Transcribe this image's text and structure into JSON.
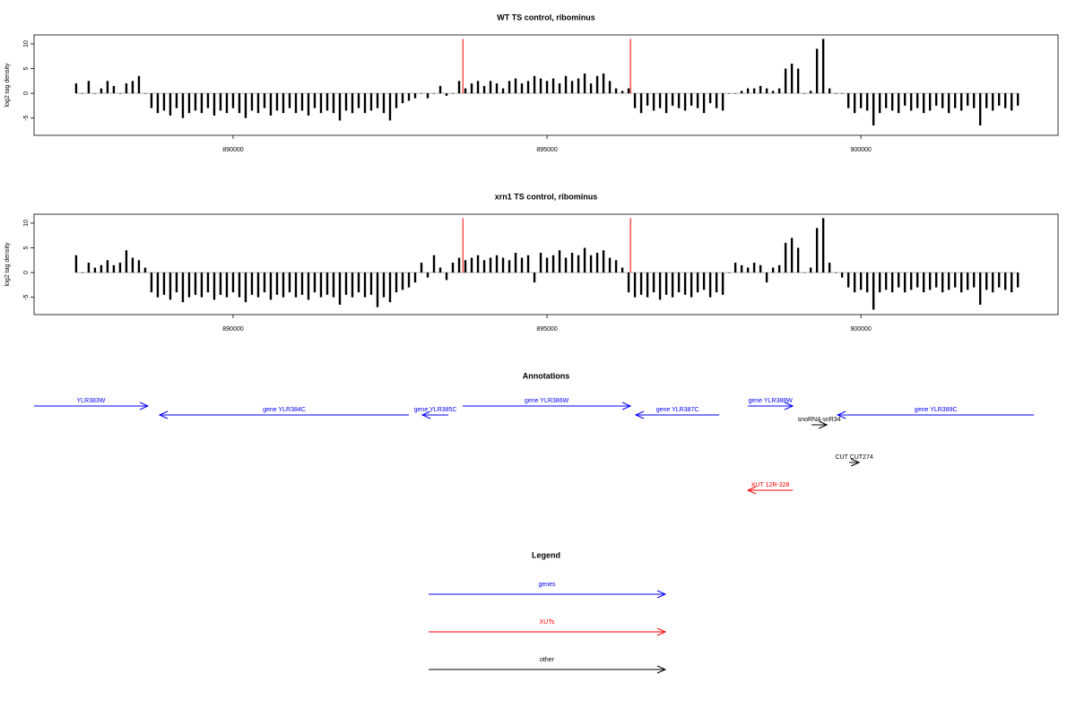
{
  "chart_data": [
    {
      "type": "bar",
      "title": "WT TS control, ribominus",
      "ylabel": "log2 tag density",
      "x": [
        887500,
        887600,
        887700,
        887800,
        887900,
        888000,
        888100,
        888200,
        888300,
        888400,
        888500,
        888600,
        888700,
        888800,
        888900,
        889000,
        889100,
        889200,
        889300,
        889400,
        889500,
        889600,
        889700,
        889800,
        889900,
        890000,
        890100,
        890200,
        890300,
        890400,
        890500,
        890600,
        890700,
        890800,
        890900,
        891000,
        891100,
        891200,
        891300,
        891400,
        891500,
        891600,
        891700,
        891800,
        891900,
        892000,
        892100,
        892200,
        892300,
        892400,
        892500,
        892600,
        892700,
        892800,
        892900,
        893000,
        893100,
        893200,
        893300,
        893400,
        893500,
        893600,
        893700,
        893800,
        893900,
        894000,
        894100,
        894200,
        894300,
        894400,
        894500,
        894600,
        894700,
        894800,
        894900,
        895000,
        895100,
        895200,
        895300,
        895400,
        895500,
        895600,
        895700,
        895800,
        895900,
        896000,
        896100,
        896200,
        896300,
        896400,
        896500,
        896600,
        896700,
        896800,
        896900,
        897000,
        897100,
        897200,
        897300,
        897400,
        897500,
        897600,
        897700,
        897800,
        897900,
        898000,
        898100,
        898200,
        898300,
        898400,
        898500,
        898600,
        898700,
        898800,
        898900,
        899000,
        899100,
        899200,
        899300,
        899400,
        899500,
        899600,
        899700,
        899800,
        899900,
        900000,
        900100,
        900200,
        900300,
        900400,
        900500,
        900600,
        900700,
        900800,
        900900,
        901000,
        901100,
        901200,
        901300,
        901400,
        901500,
        901600,
        901700,
        901800,
        901900,
        902000,
        902100,
        902200,
        902300,
        902400,
        902500
      ],
      "series": [
        {
          "color": "#000000",
          "values": [
            2,
            0,
            2.5,
            0,
            1,
            2.5,
            1.5,
            0,
            2,
            2.5,
            3.5,
            0,
            -3,
            -4,
            -3.5,
            -4.5,
            -3,
            -5,
            -4,
            -3.5,
            -4,
            -3,
            -4.5,
            -3.5,
            -4,
            -3,
            -4,
            -5,
            -3.5,
            -4,
            -3,
            -4.5,
            -3.5,
            -4,
            -3,
            -4,
            -3.5,
            -4.5,
            -3,
            -4,
            -3.5,
            -4,
            -5.5,
            -3.5,
            -4,
            -3,
            -4,
            -3.5,
            -3,
            -4,
            -5.5,
            -3,
            -2,
            -1.5,
            -1,
            0,
            -1,
            0,
            1.5,
            -0.5,
            0,
            2.5,
            1,
            2,
            2.5,
            1.5,
            2.5,
            2,
            1,
            2.5,
            3,
            2,
            2.5,
            3.5,
            3,
            2.5,
            3,
            2,
            3.5,
            2.5,
            3,
            4,
            2,
            3.5,
            4,
            2.5,
            1,
            0.5,
            1,
            -3,
            -4,
            -2.5,
            -3.5,
            -3,
            -4,
            -2.5,
            -3,
            -3.5,
            -2.5,
            -3,
            -4,
            -2,
            -3,
            -3.5,
            0,
            0,
            0.5,
            1,
            1,
            1.5,
            1,
            0.5,
            1,
            5,
            6,
            5,
            0,
            0.5,
            9,
            11,
            1,
            0,
            0,
            -3,
            -4,
            -3,
            -3.5,
            -6.5,
            -4,
            -3,
            -3.5,
            -4,
            -2.5,
            -3.5,
            -3,
            -4,
            -3.5,
            -2.5,
            -3,
            -4,
            -3,
            -3.5,
            -2.5,
            -3,
            -6.5,
            -3,
            -3.5,
            -2.5,
            -3,
            -3.5,
            -2.5
          ]
        },
        {
          "color": "#ff0000",
          "x": [
            893660,
            896330
          ],
          "values": [
            11,
            11
          ]
        }
      ],
      "xlim": [
        886830,
        903140
      ],
      "ylim": [
        -8.5,
        11.8
      ],
      "xticks": [
        890000,
        895000,
        900000
      ],
      "yticks": [
        -5,
        0,
        5,
        10
      ]
    },
    {
      "type": "bar",
      "title": "xrn1 TS control, ribominus",
      "ylabel": "log2 tag density",
      "x": [
        887500,
        887600,
        887700,
        887800,
        887900,
        888000,
        888100,
        888200,
        888300,
        888400,
        888500,
        888600,
        888700,
        888800,
        888900,
        889000,
        889100,
        889200,
        889300,
        889400,
        889500,
        889600,
        889700,
        889800,
        889900,
        890000,
        890100,
        890200,
        890300,
        890400,
        890500,
        890600,
        890700,
        890800,
        890900,
        891000,
        891100,
        891200,
        891300,
        891400,
        891500,
        891600,
        891700,
        891800,
        891900,
        892000,
        892100,
        892200,
        892300,
        892400,
        892500,
        892600,
        892700,
        892800,
        892900,
        893000,
        893100,
        893200,
        893300,
        893400,
        893500,
        893600,
        893700,
        893800,
        893900,
        894000,
        894100,
        894200,
        894300,
        894400,
        894500,
        894600,
        894700,
        894800,
        894900,
        895000,
        895100,
        895200,
        895300,
        895400,
        895500,
        895600,
        895700,
        895800,
        895900,
        896000,
        896100,
        896200,
        896300,
        896400,
        896500,
        896600,
        896700,
        896800,
        896900,
        897000,
        897100,
        897200,
        897300,
        897400,
        897500,
        897600,
        897700,
        897800,
        897900,
        898000,
        898100,
        898200,
        898300,
        898400,
        898500,
        898600,
        898700,
        898800,
        898900,
        899000,
        899100,
        899200,
        899300,
        899400,
        899500,
        899600,
        899700,
        899800,
        899900,
        900000,
        900100,
        900200,
        900300,
        900400,
        900500,
        900600,
        900700,
        900800,
        900900,
        901000,
        901100,
        901200,
        901300,
        901400,
        901500,
        901600,
        901700,
        901800,
        901900,
        902000,
        902100,
        902200,
        902300,
        902400,
        902500
      ],
      "series": [
        {
          "color": "#000000",
          "values": [
            3.5,
            0,
            2,
            1,
            1.5,
            2.5,
            1.5,
            2,
            4.5,
            3,
            2.5,
            1,
            -4,
            -5,
            -4.5,
            -5.5,
            -4,
            -6,
            -5,
            -4.5,
            -5,
            -4,
            -5.5,
            -4.5,
            -5,
            -4,
            -5,
            -6,
            -4.5,
            -5,
            -4,
            -5.5,
            -4.5,
            -5,
            -4,
            -5,
            -4.5,
            -5.5,
            -4,
            -5,
            -4.5,
            -5,
            -6.5,
            -4.5,
            -5,
            -4,
            -5,
            -4.5,
            -7,
            -5,
            -6,
            -4,
            -3.5,
            -3,
            -2,
            2,
            -1,
            3.5,
            1,
            -1.5,
            2,
            3,
            2.5,
            3,
            3.5,
            2.5,
            3,
            3.5,
            3,
            2.5,
            4,
            3,
            3.5,
            -2,
            4,
            3,
            3.5,
            4.5,
            3,
            4,
            3.5,
            5,
            3.5,
            4,
            4.5,
            3,
            2.5,
            1,
            -4,
            -5,
            -4.5,
            -5,
            -4,
            -5.5,
            -4.5,
            -5,
            -4,
            -4.5,
            -5,
            -4,
            -3.5,
            -5,
            -4,
            -4.5,
            0,
            2,
            1.5,
            1,
            2,
            1.5,
            -2,
            1,
            1.5,
            6,
            7,
            5,
            0,
            1,
            9,
            11,
            2,
            0,
            -1,
            -3,
            -4,
            -3.5,
            -4,
            -7.5,
            -4,
            -3.5,
            -4,
            -3,
            -4,
            -3.5,
            -3,
            -4,
            -3.5,
            -3,
            -4,
            -3.5,
            -3,
            -4,
            -3.5,
            -3,
            -6.5,
            -3.5,
            -4,
            -3,
            -3.5,
            -4,
            -3
          ]
        },
        {
          "color": "#ff0000",
          "x": [
            893660,
            896330
          ],
          "values": [
            11,
            11
          ]
        }
      ],
      "xlim": [
        886830,
        903140
      ],
      "ylim": [
        -8.5,
        11.8
      ],
      "xticks": [
        890000,
        895000,
        900000
      ],
      "yticks": [
        -5,
        0,
        5,
        10
      ]
    }
  ],
  "annotations": {
    "title": "Annotations",
    "features": [
      {
        "label": "YLR383W",
        "start": 886830,
        "end": 888643,
        "color": "#0000ff"
      },
      {
        "label": "gene YLR384C",
        "start": 892800,
        "end": 888829,
        "color": "#0000ff"
      },
      {
        "label": "gene YLR385C",
        "start": 893429,
        "end": 893014,
        "color": "#0000ff"
      },
      {
        "label": "gene YLR386W",
        "start": 893657,
        "end": 896329,
        "color": "#0000ff"
      },
      {
        "label": "gene YLR387C",
        "start": 897743,
        "end": 896414,
        "color": "#0000ff"
      },
      {
        "label": "gene YLR388W",
        "start": 898200,
        "end": 898914,
        "color": "#0000ff"
      },
      {
        "label": "snoRNA snR34",
        "start": 899214,
        "end": 899457,
        "color": "#000000"
      },
      {
        "label": "gene YLR389C",
        "start": 902757,
        "end": 899629,
        "color": "#0000ff"
      },
      {
        "label": "CUT CUT274",
        "start": 899814,
        "end": 899971,
        "color": "#000000"
      },
      {
        "label": "XUT 12R-328",
        "start": 898914,
        "end": 898200,
        "color": "#ff0000"
      }
    ]
  },
  "legend": {
    "title": "Legend",
    "items": [
      {
        "label": "genes",
        "color": "#0000ff"
      },
      {
        "label": "XUTs",
        "color": "#ff0000"
      },
      {
        "label": "other",
        "color": "#000000"
      }
    ]
  }
}
